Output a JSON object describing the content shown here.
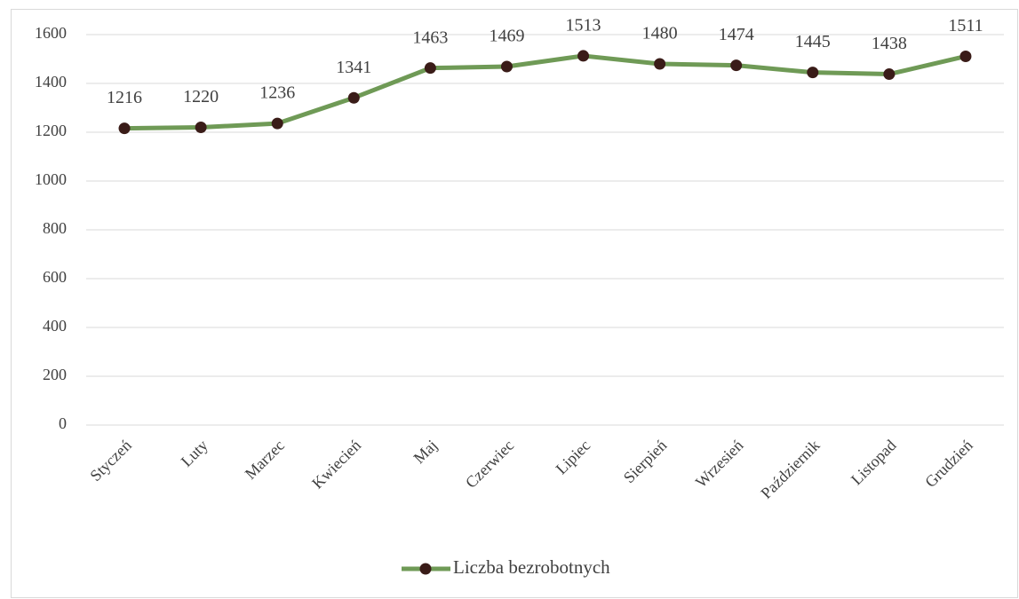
{
  "chart_data": {
    "type": "line",
    "categories": [
      "Styczeń",
      "Luty",
      "Marzec",
      "Kwiecień",
      "Maj",
      "Czerwiec",
      "Lipiec",
      "Sierpień",
      "Wrzesień",
      "Październik",
      "Listopad",
      "Grudzień"
    ],
    "series": [
      {
        "name": "Liczba bezrobotnych",
        "color": "#6f9a56",
        "marker_color": "#3a1c18",
        "values": [
          1216,
          1220,
          1236,
          1341,
          1463,
          1469,
          1513,
          1480,
          1474,
          1445,
          1438,
          1511
        ]
      }
    ],
    "ylim": [
      0,
      1600
    ],
    "yticks": [
      0,
      200,
      400,
      600,
      800,
      1000,
      1200,
      1400,
      1600
    ],
    "grid": true,
    "legend": "bottom",
    "data_labels": true
  }
}
